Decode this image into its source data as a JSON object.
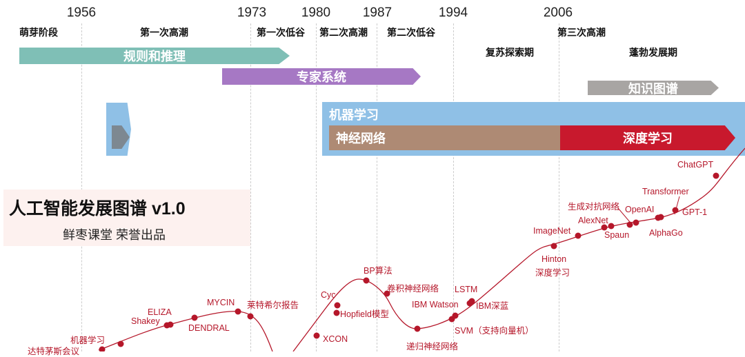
{
  "years": [
    "1956",
    "1973",
    "1980",
    "1987",
    "1994",
    "2006"
  ],
  "phases": [
    "萌芽阶段",
    "第一次高潮",
    "第一次低谷",
    "第二次高潮",
    "第二次低谷",
    "复苏探索期",
    "第三次高潮",
    "蓬勃发展期"
  ],
  "bars": {
    "rules": "规则和推理",
    "expert": "专家系统",
    "knowledge_graph": "知识图谱",
    "ml": "机器学习",
    "nn": "神经网络",
    "dl": "深度学习"
  },
  "colors": {
    "rules": "#7fbfb6",
    "expert": "#a678c4",
    "knowledge_graph": "#a8a5a3",
    "ml": "#8fc0e6",
    "nn": "#ae8a74",
    "dl": "#c8192d",
    "curve": "#b5172a"
  },
  "title": {
    "main": "人工智能发展图谱 v1.0",
    "sub": "鲜枣课堂 荣誉出品"
  },
  "events": [
    "达特茅斯会议",
    "机器学习",
    "Shakey",
    "ELIZA",
    "DENDRAL",
    "MYCIN",
    "莱特希尔报告",
    "XCON",
    "Cyc",
    "Hopfield模型",
    "BP算法",
    "卷积神经网络",
    "递归神经网络",
    "IBM Watson",
    "SVM（支持向量机）",
    "LSTM",
    "IBM深蓝",
    "Hinton",
    "深度学习",
    "ImageNet",
    "AlexNet",
    "Spaun",
    "生成对抗网络",
    "OpenAI",
    "AlphaGo",
    "Transformer",
    "GPT-1",
    "ChatGPT"
  ]
}
